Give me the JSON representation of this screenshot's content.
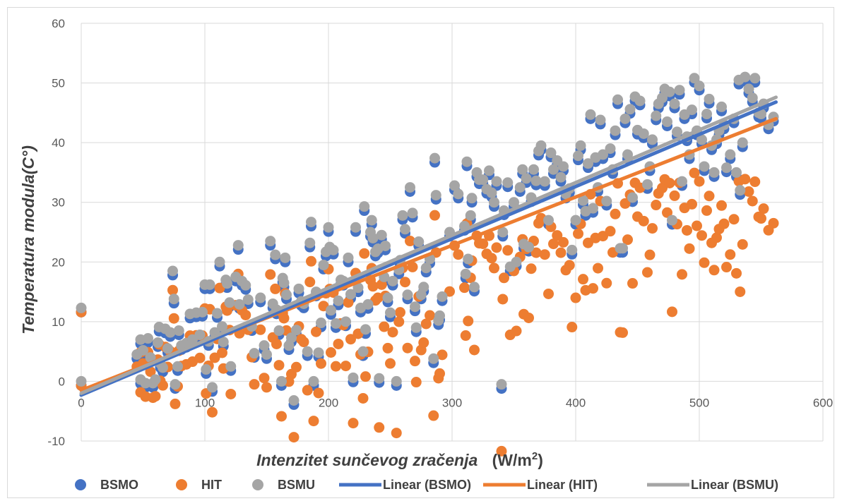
{
  "chart_data": {
    "type": "scatter",
    "title": "",
    "xlabel": "Intenzitet sunčevog zračenja",
    "xlabel_unit_prefix": "(W/m",
    "xlabel_unit_sup": "2",
    "xlabel_unit_suffix": ")",
    "ylabel": "Temperatura modula(C°)",
    "xlim": [
      0,
      600
    ],
    "ylim": [
      -10,
      60
    ],
    "x_ticks": [
      "0",
      "100",
      "200",
      "300",
      "400",
      "500",
      "600"
    ],
    "y_ticks": [
      "-10",
      "0",
      "10",
      "20",
      "30",
      "40",
      "50",
      "60"
    ],
    "grid": true,
    "legend_position": "bottom",
    "series": [
      {
        "name": "BSMO",
        "color": "#4472c4",
        "marker": "circle",
        "x_offset": 0,
        "y_offset": -0.7
      },
      {
        "name": "HIT",
        "color": "#ed7d31",
        "marker": "circle",
        "x_offset": 0,
        "y_offset": -2.2
      },
      {
        "name": "BSMU",
        "color": "#a5a5a5",
        "marker": "circle",
        "x_offset": 0,
        "y_offset": 0.0
      }
    ],
    "points_bsmu": [
      [
        0,
        0
      ],
      [
        0,
        12.3
      ],
      [
        45,
        4.5
      ],
      [
        48,
        7
      ],
      [
        48,
        0.3
      ],
      [
        50,
        5.2
      ],
      [
        52,
        -0.3
      ],
      [
        54,
        7.2
      ],
      [
        56,
        4
      ],
      [
        58,
        -0.3
      ],
      [
        60,
        0.3
      ],
      [
        62,
        6.5
      ],
      [
        63,
        9.1
      ],
      [
        64,
        3
      ],
      [
        66,
        2.3
      ],
      [
        68,
        8.8
      ],
      [
        70,
        5.5
      ],
      [
        72,
        8.2
      ],
      [
        74,
        18.5
      ],
      [
        75,
        13.8
      ],
      [
        76,
        -0.5
      ],
      [
        78,
        2.5
      ],
      [
        79,
        8.5
      ],
      [
        81,
        6
      ],
      [
        85,
        6.4
      ],
      [
        88,
        11.3
      ],
      [
        90,
        7
      ],
      [
        93,
        11.5
      ],
      [
        96,
        7.8
      ],
      [
        98,
        11.6
      ],
      [
        100,
        16.2
      ],
      [
        101,
        2
      ],
      [
        103,
        6.7
      ],
      [
        104,
        16.2
      ],
      [
        106,
        -1
      ],
      [
        108,
        8.2
      ],
      [
        110,
        11.4
      ],
      [
        112,
        20
      ],
      [
        114,
        9.2
      ],
      [
        115,
        6.6
      ],
      [
        117,
        17
      ],
      [
        118,
        16.4
      ],
      [
        120,
        13.2
      ],
      [
        121,
        2.5
      ],
      [
        125,
        17.5
      ],
      [
        127,
        22.8
      ],
      [
        128,
        12.9
      ],
      [
        130,
        16.8
      ],
      [
        133,
        16.1
      ],
      [
        135,
        13.7
      ],
      [
        138,
        9.2
      ],
      [
        140,
        4.7
      ],
      [
        145,
        14
      ],
      [
        148,
        6
      ],
      [
        150,
        4.5
      ],
      [
        153,
        23.5
      ],
      [
        155,
        13
      ],
      [
        157,
        21.2
      ],
      [
        158,
        12
      ],
      [
        160,
        8.5
      ],
      [
        162,
        0
      ],
      [
        163,
        17.3
      ],
      [
        164,
        16.5
      ],
      [
        165,
        20.7
      ],
      [
        166,
        14.5
      ],
      [
        168,
        6
      ],
      [
        170,
        7.3
      ],
      [
        172,
        -3.2
      ],
      [
        174,
        8.6
      ],
      [
        176,
        15.5
      ],
      [
        178,
        13.4
      ],
      [
        180,
        13
      ],
      [
        183,
        5
      ],
      [
        185,
        23.2
      ],
      [
        186,
        26.7
      ],
      [
        188,
        0
      ],
      [
        190,
        15
      ],
      [
        192,
        4.8
      ],
      [
        194,
        9.8
      ],
      [
        196,
        19.5
      ],
      [
        198,
        21.7
      ],
      [
        200,
        25.8
      ],
      [
        201,
        22.5
      ],
      [
        202,
        11.9
      ],
      [
        204,
        22
      ],
      [
        206,
        9.7
      ],
      [
        208,
        13.5
      ],
      [
        210,
        17
      ],
      [
        212,
        16.8
      ],
      [
        214,
        10
      ],
      [
        216,
        20.7
      ],
      [
        218,
        14.6
      ],
      [
        220,
        0.6
      ],
      [
        222,
        25.8
      ],
      [
        224,
        15.7
      ],
      [
        226,
        12.3
      ],
      [
        228,
        5
      ],
      [
        229,
        29.3
      ],
      [
        230,
        8.7
      ],
      [
        232,
        12.9
      ],
      [
        234,
        25
      ],
      [
        235,
        27
      ],
      [
        236,
        24
      ],
      [
        238,
        21.7
      ],
      [
        240,
        22.2
      ],
      [
        241,
        0.5
      ],
      [
        243,
        24.5
      ],
      [
        245,
        17.5
      ],
      [
        246,
        22.7
      ],
      [
        248,
        14
      ],
      [
        250,
        11.5
      ],
      [
        252,
        16.8
      ],
      [
        255,
        0
      ],
      [
        257,
        18.7
      ],
      [
        258,
        20.3
      ],
      [
        260,
        27.8
      ],
      [
        262,
        25.5
      ],
      [
        264,
        14.5
      ],
      [
        266,
        32.5
      ],
      [
        268,
        28.2
      ],
      [
        270,
        12.5
      ],
      [
        271,
        9
      ],
      [
        273,
        23.4
      ],
      [
        275,
        14.5
      ],
      [
        277,
        15.8
      ],
      [
        279,
        19
      ],
      [
        282,
        20.5
      ],
      [
        285,
        3.8
      ],
      [
        286,
        37.4
      ],
      [
        287,
        31.2
      ],
      [
        289,
        10.2
      ],
      [
        290,
        11
      ],
      [
        292,
        14.2
      ],
      [
        298,
        25
      ],
      [
        302,
        32.8
      ],
      [
        305,
        31.4
      ],
      [
        310,
        26
      ],
      [
        311,
        18
      ],
      [
        312,
        36.8
      ],
      [
        313,
        20.5
      ],
      [
        315,
        27.8
      ],
      [
        316,
        30.7
      ],
      [
        318,
        15.8
      ],
      [
        320,
        35
      ],
      [
        322,
        33.8
      ],
      [
        325,
        33.8
      ],
      [
        328,
        32.2
      ],
      [
        330,
        35.3
      ],
      [
        332,
        31.6
      ],
      [
        334,
        30
      ],
      [
        336,
        33.5
      ],
      [
        340,
        -0.5
      ],
      [
        341,
        25
      ],
      [
        342,
        28.6
      ],
      [
        345,
        33.3
      ],
      [
        347,
        19.2
      ],
      [
        350,
        30
      ],
      [
        352,
        20
      ],
      [
        355,
        32.5
      ],
      [
        357,
        35.5
      ],
      [
        358,
        23
      ],
      [
        360,
        34
      ],
      [
        362,
        22.5
      ],
      [
        364,
        30.8
      ],
      [
        366,
        35.5
      ],
      [
        368,
        33.6
      ],
      [
        370,
        38.6
      ],
      [
        372,
        39.5
      ],
      [
        375,
        33.5
      ],
      [
        378,
        27
      ],
      [
        380,
        38.3
      ],
      [
        382,
        35.5
      ],
      [
        385,
        37
      ],
      [
        388,
        34.2
      ],
      [
        390,
        36
      ],
      [
        392,
        31.4
      ],
      [
        395,
        32.3
      ],
      [
        397,
        22
      ],
      [
        400,
        27
      ],
      [
        402,
        37.8
      ],
      [
        404,
        39.5
      ],
      [
        406,
        30.3
      ],
      [
        408,
        28.5
      ],
      [
        410,
        36.5
      ],
      [
        412,
        44.7
      ],
      [
        414,
        29
      ],
      [
        416,
        37.5
      ],
      [
        418,
        32.5
      ],
      [
        420,
        43.8
      ],
      [
        422,
        38
      ],
      [
        425,
        30.2
      ],
      [
        428,
        39
      ],
      [
        430,
        35.5
      ],
      [
        432,
        42
      ],
      [
        434,
        47.2
      ],
      [
        436,
        22.3
      ],
      [
        438,
        22.3
      ],
      [
        440,
        44
      ],
      [
        442,
        38
      ],
      [
        444,
        45.6
      ],
      [
        446,
        30.8
      ],
      [
        448,
        47.7
      ],
      [
        450,
        42.1
      ],
      [
        452,
        47
      ],
      [
        455,
        41.5
      ],
      [
        458,
        33
      ],
      [
        460,
        36
      ],
      [
        462,
        40.5
      ],
      [
        465,
        44.5
      ],
      [
        467,
        46.5
      ],
      [
        470,
        47.5
      ],
      [
        472,
        49
      ],
      [
        474,
        43.5
      ],
      [
        476,
        48.5
      ],
      [
        478,
        27
      ],
      [
        480,
        46.5
      ],
      [
        482,
        41.8
      ],
      [
        484,
        48.8
      ],
      [
        486,
        33.5
      ],
      [
        488,
        44.7
      ],
      [
        490,
        41
      ],
      [
        492,
        38
      ],
      [
        494,
        45.5
      ],
      [
        496,
        50.8
      ],
      [
        498,
        42
      ],
      [
        500,
        49.5
      ],
      [
        502,
        40.5
      ],
      [
        504,
        36
      ],
      [
        506,
        44.8
      ],
      [
        508,
        47.3
      ],
      [
        510,
        39.5
      ],
      [
        512,
        35
      ],
      [
        514,
        40.5
      ],
      [
        516,
        42
      ],
      [
        518,
        46
      ],
      [
        520,
        43
      ],
      [
        522,
        35.8
      ],
      [
        525,
        38
      ],
      [
        528,
        44
      ],
      [
        530,
        35
      ],
      [
        532,
        50.5
      ],
      [
        533,
        32
      ],
      [
        535,
        40
      ],
      [
        537,
        51
      ],
      [
        540,
        49
      ],
      [
        543,
        47.5
      ],
      [
        545,
        50.8
      ],
      [
        548,
        45
      ],
      [
        550,
        44.8
      ],
      [
        552,
        46.5
      ],
      [
        556,
        43
      ],
      [
        560,
        44.3
      ]
    ]
  },
  "legend": {
    "items": [
      {
        "label": "BSMO",
        "kind": "marker",
        "color": "#4472c4"
      },
      {
        "label": "HIT",
        "kind": "marker",
        "color": "#ed7d31"
      },
      {
        "label": "BSMU",
        "kind": "marker",
        "color": "#a5a5a5"
      },
      {
        "label": "Linear (BSMO)",
        "kind": "line",
        "color": "#4472c4"
      },
      {
        "label": "Linear (HIT)",
        "kind": "line",
        "color": "#ed7d31"
      },
      {
        "label": "Linear (BSMU)",
        "kind": "line",
        "color": "#a5a5a5"
      }
    ]
  },
  "trendlines": [
    {
      "name": "Linear (HIT)",
      "color": "#ed7d31",
      "x": [
        0,
        562
      ],
      "y": [
        -1.5,
        44
      ]
    },
    {
      "name": "Linear (BSMO)",
      "color": "#4472c4",
      "x": [
        0,
        562
      ],
      "y": [
        -2.3,
        46.8
      ]
    },
    {
      "name": "Linear (BSMU)",
      "color": "#a5a5a5",
      "x": [
        0,
        562
      ],
      "y": [
        -2.0,
        47.6
      ]
    }
  ]
}
